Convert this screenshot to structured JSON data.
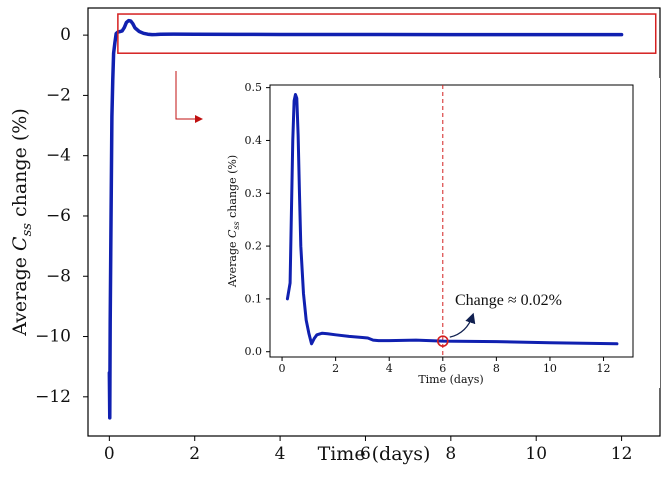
{
  "chart_data": [
    {
      "type": "line",
      "name": "main",
      "xlabel": "Time (days)",
      "ylabel_prefix": "Average ",
      "ylabel_symbol": "C",
      "ylabel_subscript": "ss",
      "ylabel_suffix": " change (%)",
      "xlim": [
        -0.5,
        12.9
      ],
      "ylim": [
        -13.3,
        0.9
      ],
      "xticks": [
        0,
        2,
        4,
        6,
        8,
        10,
        12
      ],
      "yticks": [
        0,
        -2,
        -4,
        -6,
        -8,
        -10,
        -12
      ],
      "xtick_labels": [
        "0",
        "2",
        "4",
        "6",
        "8",
        "10",
        "12"
      ],
      "ytick_labels": [
        "0",
        "−2",
        "−4",
        "−6",
        "−8",
        "−10",
        "−12"
      ],
      "line_color": "#1020b0",
      "series": [
        {
          "x": [
            0.0,
            0.01,
            0.02,
            0.04,
            0.06,
            0.08,
            0.1,
            0.13,
            0.16,
            0.2,
            0.25,
            0.3,
            0.35,
            0.4,
            0.45,
            0.5,
            0.55,
            0.6,
            0.7,
            0.8,
            0.9,
            1.0,
            1.1,
            1.2,
            1.5,
            2.0,
            3.0,
            4.0,
            6.0,
            8.0,
            10.0,
            12.0
          ],
          "y": [
            -11.2,
            -12.7,
            -9.5,
            -6.0,
            -2.7,
            -1.5,
            -0.6,
            -0.25,
            0.05,
            0.1,
            0.12,
            0.14,
            0.25,
            0.42,
            0.48,
            0.47,
            0.38,
            0.24,
            0.12,
            0.06,
            0.03,
            0.015,
            0.02,
            0.03,
            0.035,
            0.03,
            0.025,
            0.02,
            0.02,
            0.018,
            0.016,
            0.015
          ]
        }
      ],
      "highlight_box": {
        "x": [
          0.2,
          12.8
        ],
        "y": [
          -0.6,
          0.7
        ],
        "color": "#d42020"
      }
    },
    {
      "type": "line",
      "name": "inset",
      "xlabel": "Time (days)",
      "ylabel_prefix": "Average ",
      "ylabel_symbol": "C",
      "ylabel_subscript": "ss",
      "ylabel_suffix": " change (%)",
      "xlim": [
        -0.45,
        13.1
      ],
      "ylim": [
        -0.01,
        0.505
      ],
      "xticks": [
        0,
        2,
        4,
        6,
        8,
        10,
        12
      ],
      "yticks": [
        0.0,
        0.1,
        0.2,
        0.3,
        0.4,
        0.5
      ],
      "xtick_labels": [
        "0",
        "2",
        "4",
        "6",
        "8",
        "10",
        "12"
      ],
      "ytick_labels": [
        "0.0",
        "0.1",
        "0.2",
        "0.3",
        "0.4",
        "0.5"
      ],
      "line_color": "#1020b0",
      "series": [
        {
          "x": [
            0.2,
            0.3,
            0.4,
            0.45,
            0.5,
            0.55,
            0.6,
            0.65,
            0.7,
            0.8,
            0.9,
            1.0,
            1.1,
            1.2,
            1.3,
            1.5,
            1.7,
            2.0,
            2.5,
            3.0,
            3.2,
            3.4,
            3.6,
            4.0,
            5.0,
            6.0,
            8.0,
            10.0,
            12.5
          ],
          "y": [
            0.1,
            0.13,
            0.4,
            0.475,
            0.487,
            0.48,
            0.41,
            0.3,
            0.2,
            0.11,
            0.06,
            0.035,
            0.015,
            0.025,
            0.032,
            0.035,
            0.034,
            0.032,
            0.029,
            0.027,
            0.026,
            0.022,
            0.021,
            0.021,
            0.022,
            0.02,
            0.019,
            0.017,
            0.015
          ]
        }
      ],
      "reference_line": {
        "x": 6.0,
        "color": "#d42020"
      },
      "marker": {
        "x": 6.0,
        "y": 0.02,
        "color": "#d42020"
      },
      "annotation": {
        "text": "Change ≈ 0.02%",
        "x": 6.0,
        "y": 0.02
      }
    }
  ]
}
